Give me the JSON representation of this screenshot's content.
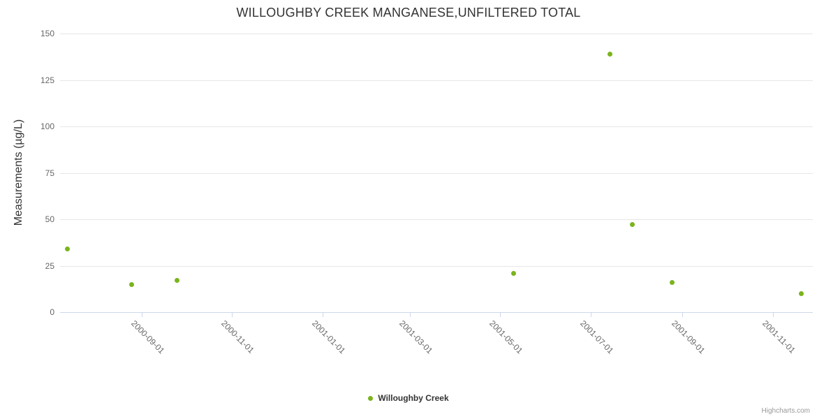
{
  "chart": {
    "title": "WILLOUGHBY CREEK MANGANESE,UNFILTERED TOTAL",
    "y_axis_title": "Measurements (µg/L)",
    "credits": "Highcharts.com"
  },
  "legend": {
    "items": [
      {
        "label": "Willoughby Creek",
        "marker": "circle-icon",
        "color": "#7ab41c"
      }
    ]
  },
  "colors": {
    "series": "#7ab41c",
    "grid": "#e6e6e6",
    "axis_line": "#ccd6eb",
    "axis_label": "#666666",
    "title": "#333333",
    "credits": "#999999",
    "background": "#ffffff"
  },
  "chart_data": {
    "type": "scatter",
    "title": "WILLOUGHBY CREEK MANGANESE,UNFILTERED TOTAL",
    "xlabel": "",
    "ylabel": "Measurements (µg/L)",
    "ylim": [
      0,
      150
    ],
    "y_ticks": [
      0,
      25,
      50,
      75,
      100,
      125,
      150
    ],
    "x_tick_labels": [
      "2000-09-01",
      "2000-11-01",
      "2001-01-01",
      "2001-03-01",
      "2001-05-01",
      "2001-07-01",
      "2001-09-01",
      "2001-11-01"
    ],
    "grid": true,
    "legend_position": "bottom-center",
    "series": [
      {
        "name": "Willoughby Creek",
        "color": "#7ab41c",
        "points": [
          {
            "date": "2000-07-13",
            "value": 34
          },
          {
            "date": "2000-08-25",
            "value": 15
          },
          {
            "date": "2000-09-25",
            "value": 17
          },
          {
            "date": "2001-05-10",
            "value": 21
          },
          {
            "date": "2001-07-14",
            "value": 139
          },
          {
            "date": "2001-07-29",
            "value": 47
          },
          {
            "date": "2001-08-25",
            "value": 16
          },
          {
            "date": "2001-11-20",
            "value": 10
          }
        ]
      }
    ]
  }
}
